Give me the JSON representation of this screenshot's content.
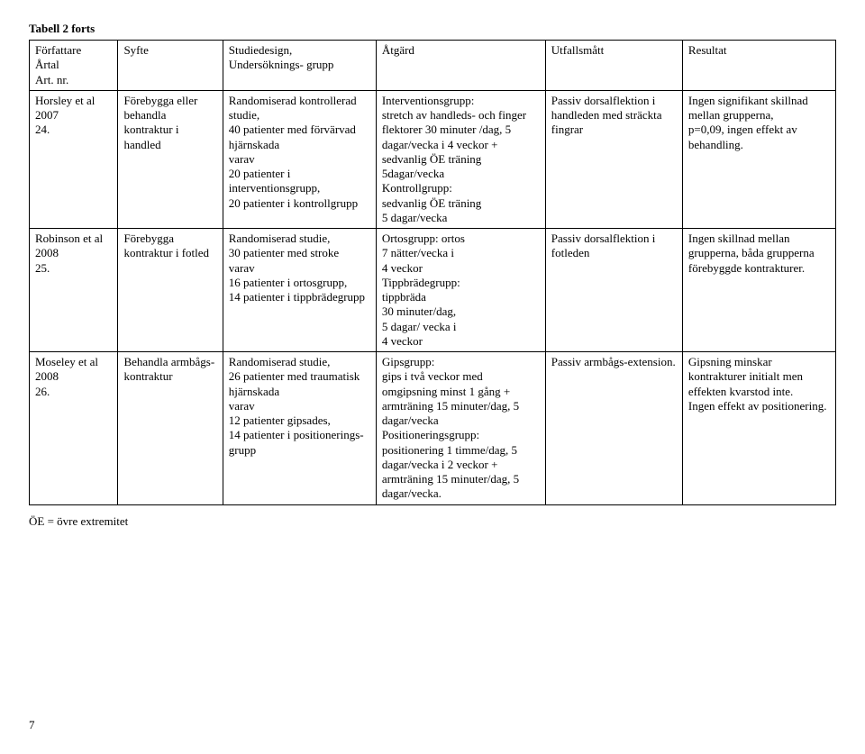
{
  "title": "Tabell 2 forts",
  "columns": [
    "Författare\nÅrtal\nArt. nr.",
    "Syfte",
    "Studiedesign,\nUndersöknings- grupp",
    "Åtgärd",
    "Utfallsmått",
    "Resultat"
  ],
  "rows": [
    {
      "c0": "Horsley et al\n2007\n24.",
      "c1": "Förebygga eller behandla kontraktur i handled",
      "c2": "Randomiserad kontrollerad studie,\n40 patienter med förvärvad hjärnskada\nvarav\n20 patienter i interventionsgrupp,\n20 patienter i kontrollgrupp",
      "c3": "Interventionsgrupp:\nstretch av handleds- och finger flektorer 30 minuter /dag, 5 dagar/vecka i 4 veckor + sedvanlig ÖE träning 5dagar/vecka\nKontrollgrupp:\nsedvanlig ÖE träning\n5 dagar/vecka",
      "c4": "Passiv dorsalflektion i handleden med sträckta fingrar",
      "c5": "Ingen signifikant skillnad mellan grupperna,\np=0,09, ingen effekt av behandling."
    },
    {
      "c0": "Robinson et al\n2008\n25.",
      "c1": "Förebygga kontraktur i fotled",
      "c2": "Randomiserad studie,\n30 patienter med stroke\nvarav\n16 patienter i ortosgrupp,\n14 patienter i tippbrädegrupp",
      "c3": "Ortosgrupp: ortos\n7 nätter/vecka i\n 4 veckor\nTippbrädegrupp:\ntippbräda\n30 minuter/dag,\n5 dagar/ vecka i\n4 veckor",
      "c4": "Passiv dorsalflektion i fotleden",
      "c5": "Ingen skillnad mellan grupperna, båda grupperna förebyggde kontrakturer."
    },
    {
      "c0": "Moseley et al\n2008\n26.",
      "c1": "Behandla armbågs-kontraktur",
      "c2": "Randomiserad studie,\n26 patienter med traumatisk hjärnskada\nvarav\n12 patienter gipsades,\n14 patienter i positionerings-grupp",
      "c3": "Gipsgrupp:\ngips i två veckor med omgipsning minst 1 gång + armträning 15 minuter/dag, 5 dagar/vecka\nPositioneringsgrupp:\npositionering 1 timme/dag, 5 dagar/vecka i 2 veckor + armträning 15 minuter/dag, 5 dagar/vecka.",
      "c4": "Passiv armbågs-extension.",
      "c5": "Gipsning minskar kontrakturer initialt men effekten kvarstod inte.\nIngen effekt av positionering."
    }
  ],
  "footnote": "ÖE = övre extremitet",
  "page_number": "7"
}
